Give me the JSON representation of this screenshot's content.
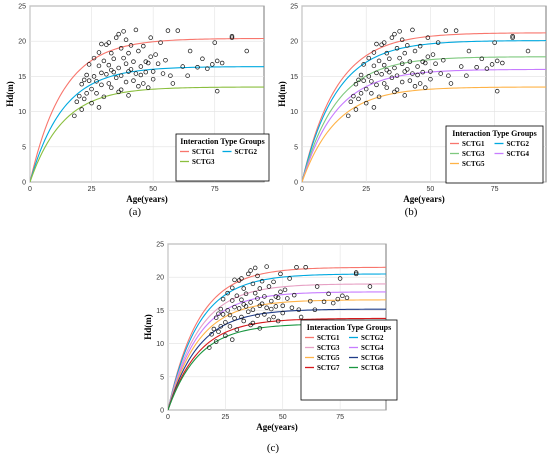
{
  "figure": {
    "panel_labels": [
      "(a)",
      "(b)",
      "(c)"
    ]
  },
  "chart_data": [
    {
      "type": "line",
      "panel": "(a)",
      "xlabel": "Age(years)",
      "ylabel": "Hd(m)",
      "xlim": [
        0,
        95
      ],
      "ylim": [
        0,
        25
      ],
      "x_ticks": [
        0,
        25,
        50,
        75
      ],
      "y_ticks": [
        0,
        5,
        10,
        15,
        20,
        25
      ],
      "grid": true,
      "legend": {
        "title": "Interaction Type Groups",
        "position": "bottom-right",
        "columns": 2
      },
      "series": [
        {
          "name": "SCTG1",
          "color": "#f8766d",
          "asymptote": 20.4,
          "k": 0.075
        },
        {
          "name": "SCTG2",
          "color": "#00a9e0",
          "asymptote": 16.4,
          "k": 0.075
        },
        {
          "name": "SCTG3",
          "color": "#8bbf3f",
          "asymptote": 13.5,
          "k": 0.075
        }
      ]
    },
    {
      "type": "line",
      "panel": "(b)",
      "xlabel": "Age(years)",
      "ylabel": "Hd(m)",
      "xlim": [
        0,
        95
      ],
      "ylim": [
        0,
        25
      ],
      "x_ticks": [
        0,
        25,
        50,
        75
      ],
      "y_ticks": [
        0,
        5,
        10,
        15,
        20,
        25
      ],
      "grid": true,
      "legend": {
        "title": "Interaction Type Groups",
        "position": "bottom-right",
        "columns": 2
      },
      "series": [
        {
          "name": "SCTG1",
          "color": "#f8766d",
          "asymptote": 21.2,
          "k": 0.075
        },
        {
          "name": "SCTG2",
          "color": "#00a9e0",
          "asymptote": 20.1,
          "k": 0.075
        },
        {
          "name": "SCTG3",
          "color": "#7fc97f",
          "asymptote": 17.8,
          "k": 0.075
        },
        {
          "name": "SCTG4",
          "color": "#c77cff",
          "asymptote": 16.0,
          "k": 0.075
        },
        {
          "name": "SCTG5",
          "color": "#ffb347",
          "asymptote": 13.5,
          "k": 0.075
        }
      ]
    },
    {
      "type": "line",
      "panel": "(c)",
      "xlabel": "Age(years)",
      "ylabel": "Hd(m)",
      "xlim": [
        0,
        95
      ],
      "ylim": [
        0,
        25
      ],
      "x_ticks": [
        0,
        25,
        50,
        75
      ],
      "y_ticks": [
        0,
        5,
        10,
        15,
        20,
        25
      ],
      "grid": true,
      "legend": {
        "title": "Interaction Type Groups",
        "position": "bottom-right",
        "columns": 2
      },
      "series": [
        {
          "name": "SCTG1",
          "color": "#f8766d",
          "asymptote": 21.5,
          "k": 0.075
        },
        {
          "name": "SCTG2",
          "color": "#00a9e0",
          "asymptote": 20.5,
          "k": 0.075
        },
        {
          "name": "SCTG3",
          "color": "#e6a0c4",
          "asymptote": 19.0,
          "k": 0.075
        },
        {
          "name": "SCTG4",
          "color": "#c77cff",
          "asymptote": 17.8,
          "k": 0.075
        },
        {
          "name": "SCTG5",
          "color": "#ffb347",
          "asymptote": 16.6,
          "k": 0.075
        },
        {
          "name": "SCTG6",
          "color": "#1f3c88",
          "asymptote": 15.2,
          "k": 0.075
        },
        {
          "name": "SCTG7",
          "color": "#d7191c",
          "asymptote": 13.8,
          "k": 0.075
        },
        {
          "name": "SCTG8",
          "color": "#1a9641",
          "asymptote": 13.0,
          "k": 0.075
        }
      ]
    }
  ],
  "observations": {
    "marker": "open-circle",
    "points": [
      [
        18,
        9.4
      ],
      [
        19,
        11.4
      ],
      [
        20,
        12.2
      ],
      [
        21,
        10.3
      ],
      [
        21,
        13.9
      ],
      [
        22,
        14.5
      ],
      [
        22,
        11.8
      ],
      [
        23,
        15.2
      ],
      [
        23,
        12.6
      ],
      [
        24,
        14.4
      ],
      [
        24,
        16.7
      ],
      [
        25,
        13.2
      ],
      [
        25,
        11.2
      ],
      [
        26,
        15.0
      ],
      [
        26,
        17.6
      ],
      [
        27,
        14.3
      ],
      [
        27,
        12.6
      ],
      [
        28,
        16.5
      ],
      [
        28,
        18.4
      ],
      [
        28,
        10.6
      ],
      [
        29,
        15.5
      ],
      [
        29,
        13.8
      ],
      [
        29,
        19.6
      ],
      [
        30,
        17.2
      ],
      [
        30,
        12.1
      ],
      [
        31,
        15.3
      ],
      [
        31,
        19.5
      ],
      [
        32,
        16.6
      ],
      [
        32,
        14.0
      ],
      [
        32,
        19.8
      ],
      [
        33,
        15.9
      ],
      [
        33,
        13.4
      ],
      [
        33,
        18.3
      ],
      [
        34,
        17.5
      ],
      [
        34,
        15.6
      ],
      [
        35,
        14.8
      ],
      [
        35,
        20.5
      ],
      [
        36,
        16.2
      ],
      [
        36,
        12.8
      ],
      [
        36,
        21.0
      ],
      [
        37,
        15.1
      ],
      [
        37,
        19.0
      ],
      [
        37,
        13.1
      ],
      [
        38,
        17.6
      ],
      [
        38,
        21.4
      ],
      [
        39,
        14.2
      ],
      [
        39,
        16.8
      ],
      [
        39,
        20.2
      ],
      [
        40,
        15.7
      ],
      [
        40,
        18.3
      ],
      [
        40,
        12.3
      ],
      [
        41,
        16.0
      ],
      [
        41,
        19.4
      ],
      [
        42,
        14.4
      ],
      [
        42,
        17.1
      ],
      [
        43,
        15.4
      ],
      [
        43,
        21.6
      ],
      [
        44,
        13.6
      ],
      [
        44,
        18.6
      ],
      [
        45,
        16.4
      ],
      [
        45,
        15.2
      ],
      [
        46,
        14.0
      ],
      [
        46,
        19.3
      ],
      [
        47,
        17.1
      ],
      [
        47,
        15.6
      ],
      [
        48,
        13.4
      ],
      [
        48,
        16.9
      ],
      [
        49,
        17.8
      ],
      [
        49,
        20.5
      ],
      [
        50,
        15.7
      ],
      [
        50,
        14.6
      ],
      [
        51,
        18.1
      ],
      [
        52,
        16.8
      ],
      [
        53,
        19.8
      ],
      [
        54,
        15.4
      ],
      [
        55,
        17.3
      ],
      [
        56,
        21.5
      ],
      [
        57,
        15.1
      ],
      [
        58,
        14.0
      ],
      [
        60,
        21.5
      ],
      [
        62,
        16.4
      ],
      [
        64,
        15.1
      ],
      [
        65,
        18.6
      ],
      [
        68,
        16.3
      ],
      [
        70,
        17.5
      ],
      [
        72,
        16.1
      ],
      [
        74,
        16.7
      ],
      [
        75,
        19.8
      ],
      [
        76,
        12.9
      ],
      [
        76,
        17.2
      ],
      [
        78,
        16.9
      ],
      [
        82,
        20.7
      ],
      [
        82,
        20.5
      ],
      [
        88,
        18.6
      ]
    ]
  }
}
